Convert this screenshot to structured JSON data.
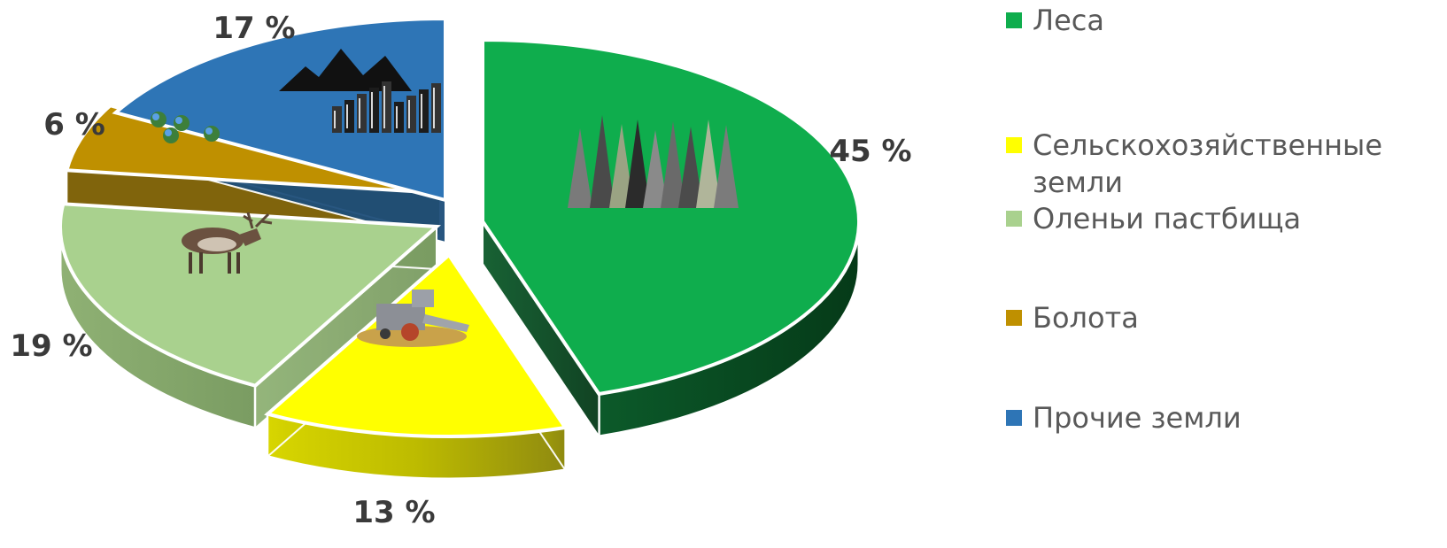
{
  "chart_data": {
    "type": "pie",
    "title": "",
    "categories": [
      "Леса",
      "Сельскохозяйственные земли",
      "Оленьи пастбища",
      "Болота",
      "Прочие земли"
    ],
    "values": [
      45,
      13,
      19,
      6,
      17
    ],
    "labels": [
      "45 %",
      "13 %",
      "19 %",
      "6 %",
      "17 %"
    ],
    "colors": [
      "#0fad4d",
      "#ffff00",
      "#a9d18e",
      "#bf9000",
      "#2e75b6"
    ],
    "legend_lines": [
      [
        "Леса"
      ],
      [
        "Сельскохозяйственные",
        "земли"
      ],
      [
        "Оленьи пастбища"
      ],
      [
        "Болота"
      ],
      [
        "Прочие земли"
      ]
    ],
    "legend_position": "right",
    "style": "3d-exploded",
    "icons": [
      "forest-icon",
      "combine-harvester-icon",
      "reindeer-icon",
      "swamp-plants-icon",
      "mountains-city-icon"
    ]
  }
}
